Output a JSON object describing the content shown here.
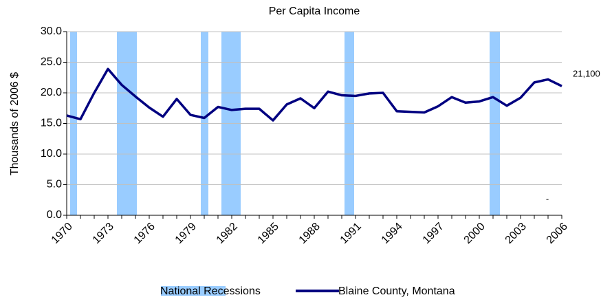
{
  "chart_data": {
    "type": "line",
    "title": "Per Capita Income",
    "y_label": "Thousands of 2006 $",
    "x": [
      1970,
      1971,
      1972,
      1973,
      1974,
      1975,
      1976,
      1977,
      1978,
      1979,
      1980,
      1981,
      1982,
      1983,
      1984,
      1985,
      1986,
      1987,
      1988,
      1989,
      1990,
      1991,
      1992,
      1993,
      1994,
      1995,
      1996,
      1997,
      1998,
      1999,
      2000,
      2001,
      2002,
      2003,
      2004,
      2005,
      2006
    ],
    "xlim": [
      1970,
      2006
    ],
    "xticks": [
      1970,
      1973,
      1976,
      1979,
      1982,
      1985,
      1988,
      1991,
      1994,
      1997,
      2000,
      2003,
      2006
    ],
    "ylim": [
      0,
      30
    ],
    "yticks": [
      {
        "value": 0,
        "label": "0.0"
      },
      {
        "value": 5,
        "label": "5.0"
      },
      {
        "value": 10,
        "label": "10.0"
      },
      {
        "value": 15,
        "label": "15.0"
      },
      {
        "value": 20,
        "label": "20.0"
      },
      {
        "value": 25,
        "label": "25.0"
      },
      {
        "value": 30,
        "label": "30.0"
      }
    ],
    "grid": true,
    "annotation": "-",
    "series": [
      {
        "name": "National Recessions",
        "color": "#99ccff",
        "spans": [
          [
            1970.25,
            1970.75
          ],
          [
            1973.65,
            1975.1
          ],
          [
            1979.75,
            1980.3
          ],
          [
            1981.25,
            1982.65
          ],
          [
            1990.2,
            1990.9
          ],
          [
            2000.75,
            2001.5
          ]
        ]
      },
      {
        "name": "Blaine County, Montana",
        "color": "#000080",
        "values": [
          16.3,
          15.7,
          20.0,
          23.9,
          21.3,
          19.4,
          17.6,
          16.1,
          19.0,
          16.4,
          15.9,
          17.7,
          17.2,
          17.4,
          17.4,
          15.5,
          18.1,
          19.1,
          17.5,
          20.2,
          19.6,
          19.5,
          19.9,
          20.0,
          17.0,
          16.9,
          16.8,
          17.8,
          19.3,
          18.4,
          18.6,
          19.3,
          17.9,
          19.2,
          21.7,
          22.2,
          21.1
        ],
        "value_labels": [
          null,
          null,
          null,
          null,
          null,
          null,
          null,
          null,
          null,
          null,
          null,
          null,
          null,
          null,
          null,
          null,
          null,
          null,
          null,
          null,
          null,
          null,
          null,
          null,
          null,
          null,
          null,
          null,
          null,
          null,
          null,
          null,
          null,
          null,
          null,
          null,
          "21,100"
        ]
      }
    ]
  }
}
